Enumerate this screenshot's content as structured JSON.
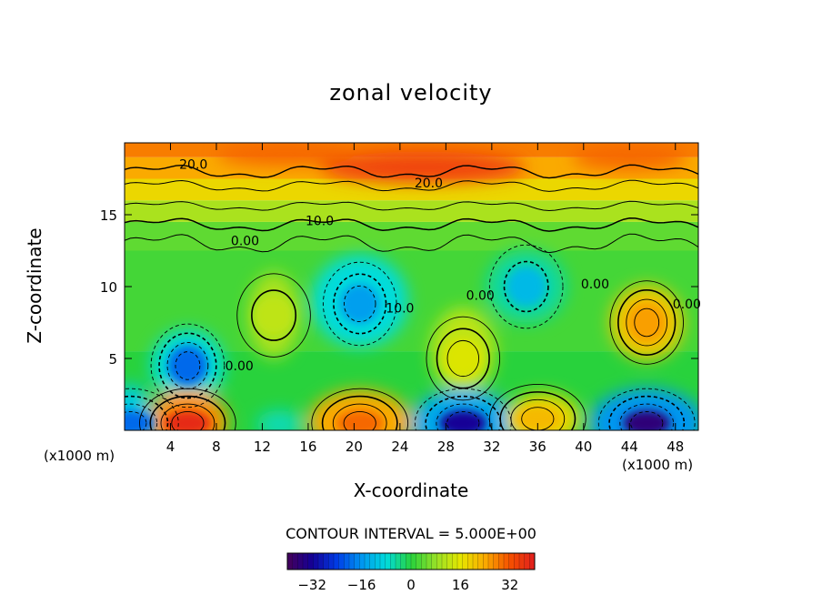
{
  "chart_data": {
    "type": "heatmap",
    "title": "zonal velocity",
    "xlabel": "X-coordinate",
    "ylabel": "Z-coordinate",
    "x_unit": "(x1000 m)",
    "xlim": [
      0,
      50
    ],
    "ylim": [
      0,
      20
    ],
    "x_ticks": [
      4,
      8,
      12,
      16,
      20,
      24,
      28,
      32,
      36,
      40,
      44,
      48
    ],
    "y_ticks": [
      5,
      10,
      15
    ],
    "contour_interval_text": "CONTOUR INTERVAL = 5.000E+00",
    "colorbar": {
      "range": [
        -40,
        40
      ],
      "ticks": [
        -32,
        -16,
        0,
        16,
        32
      ],
      "colormap": "rainbow (purple-blue-cyan-green-yellow-red)"
    },
    "contour_labels": [
      {
        "text": "20.0",
        "x": 6,
        "z": 18.5
      },
      {
        "text": "20.0",
        "x": 26.5,
        "z": 17.2
      },
      {
        "text": "10.0",
        "x": 17,
        "z": 14.6
      },
      {
        "text": "0.00",
        "x": 10.5,
        "z": 13.2
      },
      {
        "text": "10.0",
        "x": 24,
        "z": 8.5
      },
      {
        "text": "0.00",
        "x": 31,
        "z": 9.4
      },
      {
        "text": "0.00",
        "x": 41,
        "z": 10.2
      },
      {
        "text": "0.00",
        "x": 49,
        "z": 8.8
      },
      {
        "text": "0.00",
        "x": 10,
        "z": 4.5
      }
    ],
    "features": [
      {
        "type": "jet",
        "description": "positive zonal velocity layer near top",
        "z_range": [
          16,
          20
        ],
        "max_value": 30
      },
      {
        "type": "min",
        "x": 5.5,
        "z": 4.5,
        "value": -20
      },
      {
        "type": "min",
        "x": 20.5,
        "z": 8.8,
        "value": -15
      },
      {
        "type": "min",
        "x": 35,
        "z": 10,
        "value": -12
      },
      {
        "type": "max",
        "x": 13,
        "z": 8,
        "value": 12
      },
      {
        "type": "max",
        "x": 29.5,
        "z": 5,
        "value": 15
      },
      {
        "type": "max",
        "x": 45.5,
        "z": 7.5,
        "value": 25
      },
      {
        "type": "max",
        "x": 5.5,
        "z": 0.5,
        "value": 38
      },
      {
        "type": "max",
        "x": 20.5,
        "z": 0.5,
        "value": 30
      },
      {
        "type": "min",
        "x": 29.5,
        "z": 0.5,
        "value": -32
      },
      {
        "type": "max",
        "x": 36,
        "z": 0.8,
        "value": 22
      },
      {
        "type": "min",
        "x": 45.5,
        "z": 0.5,
        "value": -36
      },
      {
        "type": "min",
        "x": 0.5,
        "z": 0.5,
        "value": -20
      }
    ]
  }
}
